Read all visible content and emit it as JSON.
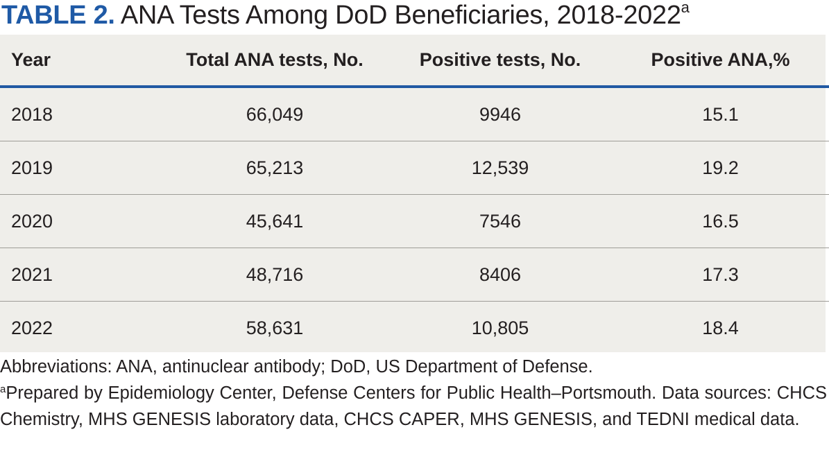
{
  "title": {
    "label": "TABLE 2.",
    "text": "ANA Tests Among DoD Beneficiaries, 2018-2022",
    "superscript": "a"
  },
  "table": {
    "headers": {
      "year": "Year",
      "total": "Total ANA tests, No.",
      "positive": "Positive tests, No.",
      "pct": "Positive ANA,%"
    },
    "rows": [
      {
        "year": "2018",
        "total": "66,049",
        "positive": "9946",
        "pct": "15.1"
      },
      {
        "year": "2019",
        "total": "65,213",
        "positive": "12,539",
        "pct": "19.2"
      },
      {
        "year": "2020",
        "total": "45,641",
        "positive": "7546",
        "pct": "16.5"
      },
      {
        "year": "2021",
        "total": "48,716",
        "positive": "8406",
        "pct": "17.3"
      },
      {
        "year": "2022",
        "total": "58,631",
        "positive": "10,805",
        "pct": "18.4"
      }
    ]
  },
  "footnotes": {
    "abbreviations": "Abbreviations: ANA, antinuclear antibody; DoD, US Department of Defense.",
    "source_marker": "a",
    "source": "Prepared by Epidemiology Center, Defense Centers for Public Health–Portsmouth. Data sources: CHCS Chemistry, MHS GENESIS laboratory data, CHCS CAPER, MHS GENESIS, and TEDNI medical data."
  },
  "colors": {
    "accent": "#1f5aa6",
    "table_background": "#efeeea",
    "header_rule": "#2159a3",
    "row_rule": "#9e9c97",
    "text": "#231f20"
  }
}
